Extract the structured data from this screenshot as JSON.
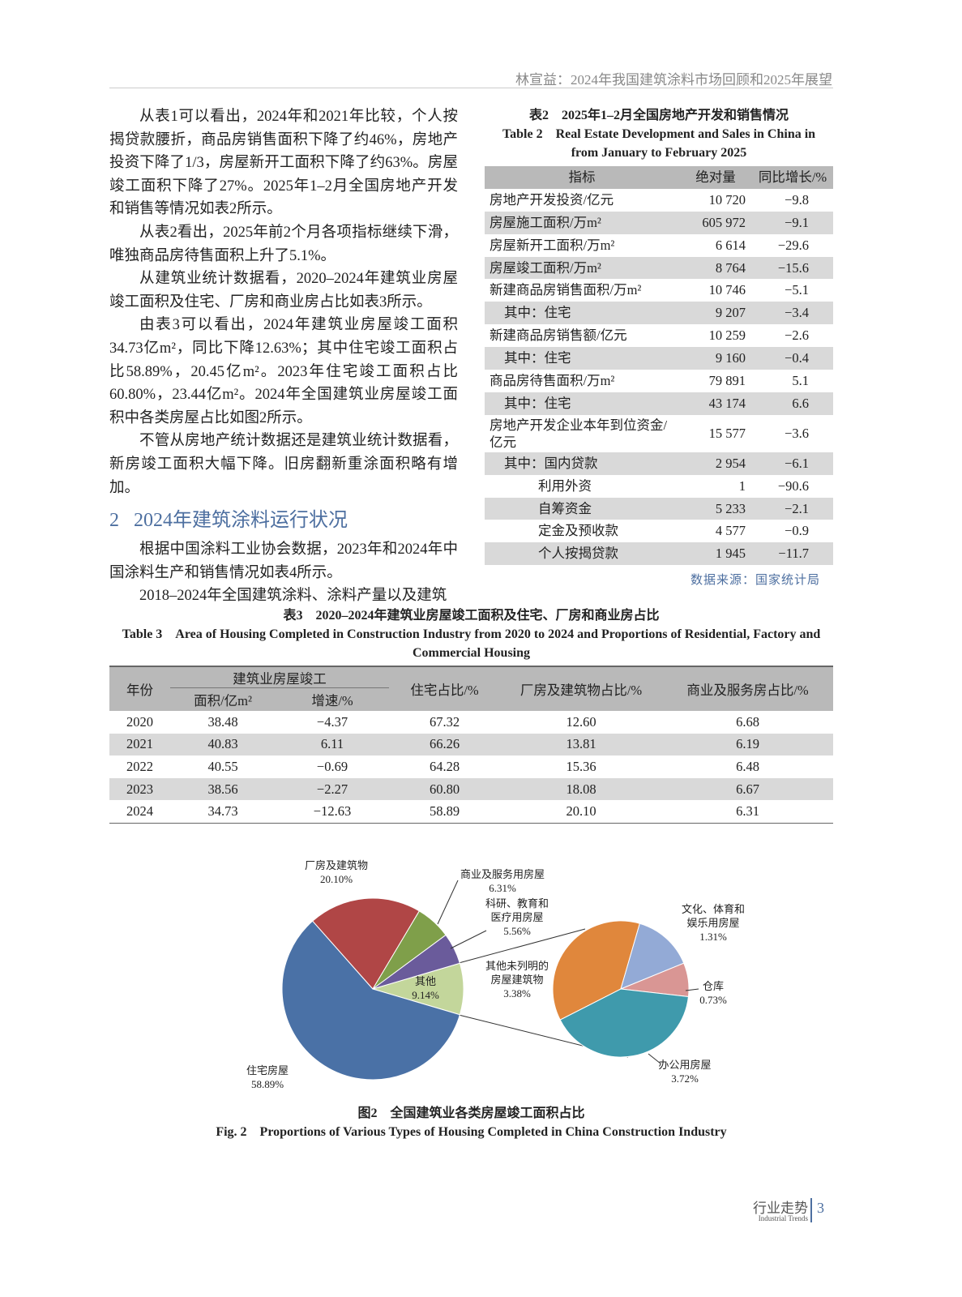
{
  "header": {
    "running_title": "林宣益：2024年我国建筑涂料市场回顾和2025年展望"
  },
  "body": {
    "paragraphs": [
      "从表1可以看出，2024年和2021年比较，个人按揭贷款腰折，商品房销售面积下降了约46%，房地产投资下降了1/3，房屋新开工面积下降了约63%。房屋竣工面积下降了27%。2025年1–2月全国房地产开发和销售等情况如表2所示。",
      "从表2看出，2025年前2个月各项指标继续下滑，唯独商品房待售面积上升了5.1%。",
      "从建筑业统计数据看，2020–2024年建筑业房屋竣工面积及住宅、厂房和商业房占比如表3所示。",
      "由表3可以看出，2024年建筑业房屋竣工面积34.73亿m²，同比下降12.63%；其中住宅竣工面积占比58.89%，20.45亿m²。2023年住宅竣工面积占比60.80%，23.44亿m²。2024年全国建筑业房屋竣工面积中各类房屋占比如图2所示。",
      "不管从房地产统计数据还是建筑业统计数据看，新房竣工面积大幅下降。旧房翻新重涂面积略有增加。"
    ],
    "section": {
      "number": "2",
      "title": "2024年建筑涂料运行状况"
    },
    "paragraphs_after": [
      "根据中国涂料工业协会数据，2023年和2024年中国涂料生产和销售情况如表4所示。",
      "2018–2024年全国建筑涂料、涂料产量以及建筑"
    ]
  },
  "table2": {
    "caption": "表2　2025年1–2月全国房地产开发和销售情况",
    "caption_en": "Table 2　Real Estate Development and Sales in China in from January to February 2025",
    "columns": [
      "指标",
      "绝对量",
      "同比增长/%"
    ],
    "rows": [
      [
        "房地产开发投资/亿元",
        "10 720",
        "−9.8"
      ],
      [
        "房屋施工面积/万m²",
        "605 972",
        "−9.1"
      ],
      [
        "房屋新开工面积/万m²",
        "6 614",
        "−29.6"
      ],
      [
        "房屋竣工面积/万m²",
        "8 764",
        "−15.6"
      ],
      [
        "新建商品房销售面积/万m²",
        "10 746",
        "−5.1"
      ],
      [
        "其中：住宅",
        "9 207",
        "−3.4"
      ],
      [
        "新建商品房销售额/亿元",
        "10 259",
        "−2.6"
      ],
      [
        "其中：住宅",
        "9 160",
        "−0.4"
      ],
      [
        "商品房待售面积/万m²",
        "79 891",
        "5.1"
      ],
      [
        "其中：住宅",
        "43 174",
        "6.6"
      ],
      [
        "房地产开发企业本年到位资金/亿元",
        "15 577",
        "−3.6"
      ],
      [
        "其中：国内贷款",
        "2 954",
        "−6.1"
      ],
      [
        "利用外资",
        "1",
        "−90.6"
      ],
      [
        "自筹资金",
        "5 233",
        "−2.1"
      ],
      [
        "定金及预收款",
        "4 577",
        "−0.9"
      ],
      [
        "个人按揭贷款",
        "1 945",
        "−11.7"
      ]
    ],
    "source": "数据来源：国家统计局"
  },
  "table3": {
    "caption": "表3　2020–2024年建筑业房屋竣工面积及住宅、厂房和商业房占比",
    "caption_en": "Table 3　Area of Housing Completed in Construction Industry from 2020 to 2024 and Proportions of Residential, Factory and Commercial Housing",
    "header": {
      "year": "年份",
      "group": "建筑业房屋竣工",
      "area": "面积/亿m²",
      "growth": "增速/%",
      "residential": "住宅占比/%",
      "factory": "厂房及建筑物占比/%",
      "commercial": "商业及服务房占比/%"
    },
    "rows": [
      [
        "2020",
        "38.48",
        "−4.37",
        "67.32",
        "12.60",
        "6.68"
      ],
      [
        "2021",
        "40.83",
        "6.11",
        "66.26",
        "13.81",
        "6.19"
      ],
      [
        "2022",
        "40.55",
        "−0.69",
        "64.28",
        "15.36",
        "6.48"
      ],
      [
        "2023",
        "38.56",
        "−2.27",
        "60.80",
        "18.08",
        "6.67"
      ],
      [
        "2024",
        "34.73",
        "−12.63",
        "58.89",
        "20.10",
        "6.31"
      ]
    ]
  },
  "chart_data": [
    {
      "type": "pie",
      "categories": [
        "住宅房屋",
        "其他",
        "厂房及建筑物",
        "商业及服务用房屋",
        "科研、教育和医疗用房屋"
      ],
      "values": [
        58.89,
        9.14,
        20.1,
        6.31,
        5.56
      ],
      "value_labels": [
        "58.89%",
        "9.14%",
        "20.10%",
        "6.31%",
        "5.56%"
      ],
      "colors": [
        "#4a71a6",
        "#c3d69b",
        "#b04646",
        "#7f9f4a",
        "#6a5b9b"
      ]
    },
    {
      "type": "pie",
      "categories": [
        "其他未列明的房屋建筑物",
        "文化、体育和娱乐用房屋",
        "仓库",
        "办公用房屋"
      ],
      "values": [
        3.38,
        1.31,
        0.73,
        3.72
      ],
      "value_labels": [
        "3.38%",
        "1.31%",
        "0.73%",
        "3.72%"
      ],
      "colors": [
        "#e0873c",
        "#93aad6",
        "#d99694",
        "#3f9aac"
      ]
    }
  ],
  "figure": {
    "caption": "图2　全国建筑业各类房屋竣工面积占比",
    "caption_en": "Fig. 2　Proportions of Various Types of Housing Completed in China Construction Industry"
  },
  "footer": {
    "section": "行业走势",
    "section_en": "Industrial Trends",
    "page": "3"
  }
}
